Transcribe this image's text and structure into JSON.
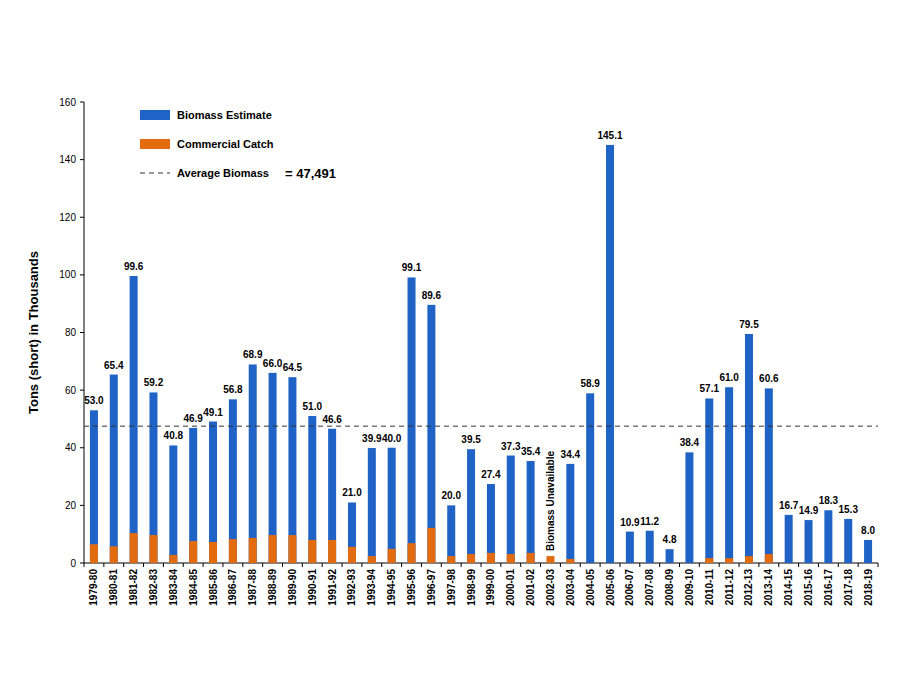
{
  "chart_data": {
    "type": "bar",
    "y_label": "Tons (short) in Thousands",
    "categories": [
      "1979-80",
      "1980-81",
      "1981-82",
      "1982-83",
      "1983-84",
      "1984-85",
      "1985-86",
      "1986-87",
      "1987-88",
      "1988-89",
      "1989-90",
      "1990-91",
      "1991-92",
      "1992-93",
      "1993-94",
      "1994-95",
      "1995-96",
      "1996-97",
      "1997-98",
      "1998-99",
      "1999-00",
      "2000-01",
      "2001-02",
      "2002-03",
      "2003-04",
      "2004-05",
      "2005-06",
      "2006-07",
      "2007-08",
      "2008-09",
      "2009-10",
      "2010-11",
      "2011-12",
      "2012-13",
      "2013-14",
      "2014-15",
      "2015-16",
      "2016-17",
      "2017-18",
      "2018-19"
    ],
    "series": [
      {
        "name": "Biomass Estimate",
        "color": "#1f63c6",
        "values": [
          53.0,
          65.4,
          99.6,
          59.2,
          40.8,
          46.9,
          49.1,
          56.8,
          68.9,
          66.0,
          64.5,
          51.0,
          46.6,
          21.0,
          39.9,
          40.0,
          99.1,
          89.6,
          20.0,
          39.5,
          27.4,
          37.3,
          35.4,
          null,
          34.4,
          58.9,
          145.1,
          10.9,
          11.2,
          4.8,
          38.4,
          57.1,
          61.0,
          79.5,
          60.6,
          16.7,
          14.9,
          18.3,
          15.3,
          8.0
        ],
        "value_labels": [
          "53.0",
          "65.4",
          "99.6",
          "59.2",
          "40.8",
          "46.9",
          "49.1",
          "56.8",
          "68.9",
          "66.0",
          "64.5",
          "51.0",
          "46.6",
          "21.0",
          "39.9",
          "40.0",
          "99.1",
          "89.6",
          "20.0",
          "39.5",
          "27.4",
          "37.3",
          "35.4",
          null,
          "34.4",
          "58.9",
          "145.1",
          "10.9",
          "11.2",
          "4.8",
          "38.4",
          "57.1",
          "61.0",
          "79.5",
          "60.6",
          "16.7",
          "14.9",
          "18.3",
          "15.3",
          "8.0"
        ],
        "data_labels": true
      },
      {
        "name": "Commercial Catch",
        "color": "#e26b10",
        "values": [
          6.5,
          5.8,
          10.4,
          9.7,
          2.8,
          7.6,
          7.3,
          8.3,
          8.7,
          9.7,
          9.7,
          8.0,
          8.0,
          5.6,
          2.4,
          4.9,
          6.9,
          12.2,
          2.4,
          3.1,
          3.5,
          3.1,
          3.5,
          2.4,
          1.4,
          0,
          0,
          0,
          0,
          0,
          0,
          1.7,
          1.7,
          2.4,
          3.1,
          0,
          0,
          0,
          0,
          0
        ]
      }
    ],
    "reference_line": {
      "name": "Average Biomass",
      "value": 47.491,
      "value_label": "= 47,491",
      "line_style": "dashed"
    },
    "annotations": [
      {
        "text": "Biomass Unavailable",
        "category": "2002-03"
      }
    ],
    "ylim": [
      0,
      160
    ],
    "yticks": [
      0,
      20,
      40,
      60,
      80,
      100,
      120,
      140,
      160
    ],
    "grid": false,
    "legend": "top-left"
  }
}
